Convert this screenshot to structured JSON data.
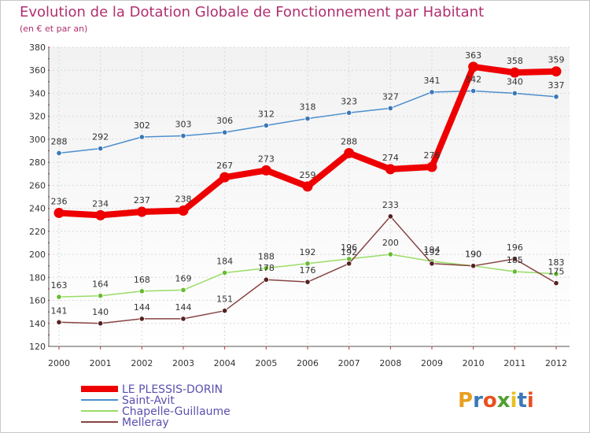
{
  "chart_data": {
    "type": "line",
    "title": "Evolution de la Dotation Globale de Fonctionnement par Habitant",
    "subtitle": "(en € et par an)",
    "xlabel": "",
    "ylabel": "",
    "ylim": [
      120,
      380
    ],
    "yticks": [
      120,
      140,
      160,
      180,
      200,
      220,
      240,
      260,
      280,
      300,
      320,
      340,
      360,
      380
    ],
    "categories": [
      "2000",
      "2001",
      "2002",
      "2003",
      "2004",
      "2005",
      "2006",
      "2007",
      "2008",
      "2009",
      "2010",
      "2011",
      "2012"
    ],
    "grid": true,
    "legend_position": "bottom-left",
    "series": [
      {
        "name": "LE PLESSIS-DORIN",
        "color": "#ee0000",
        "emphasis": true,
        "values": [
          236,
          234,
          237,
          238,
          267,
          273,
          259,
          288,
          274,
          276,
          363,
          358,
          359
        ]
      },
      {
        "name": "Saint-Avit",
        "color": "#4d8fcc",
        "point_color": "#3a78b8",
        "emphasis": false,
        "values": [
          288,
          292,
          302,
          303,
          306,
          312,
          318,
          323,
          327,
          341,
          342,
          340,
          337
        ]
      },
      {
        "name": "Chapelle-Guillaume",
        "color": "#99dd66",
        "point_color": "#66bb33",
        "emphasis": false,
        "values": [
          163,
          164,
          168,
          169,
          184,
          188,
          192,
          196,
          200,
          194,
          190,
          185,
          183
        ]
      },
      {
        "name": "Melleray",
        "color": "#884444",
        "point_color": "#552222",
        "emphasis": false,
        "values": [
          141,
          140,
          144,
          144,
          151,
          178,
          176,
          192,
          233,
          192,
          190,
          196,
          175
        ]
      }
    ]
  },
  "logo": {
    "text": "Proxiti"
  }
}
